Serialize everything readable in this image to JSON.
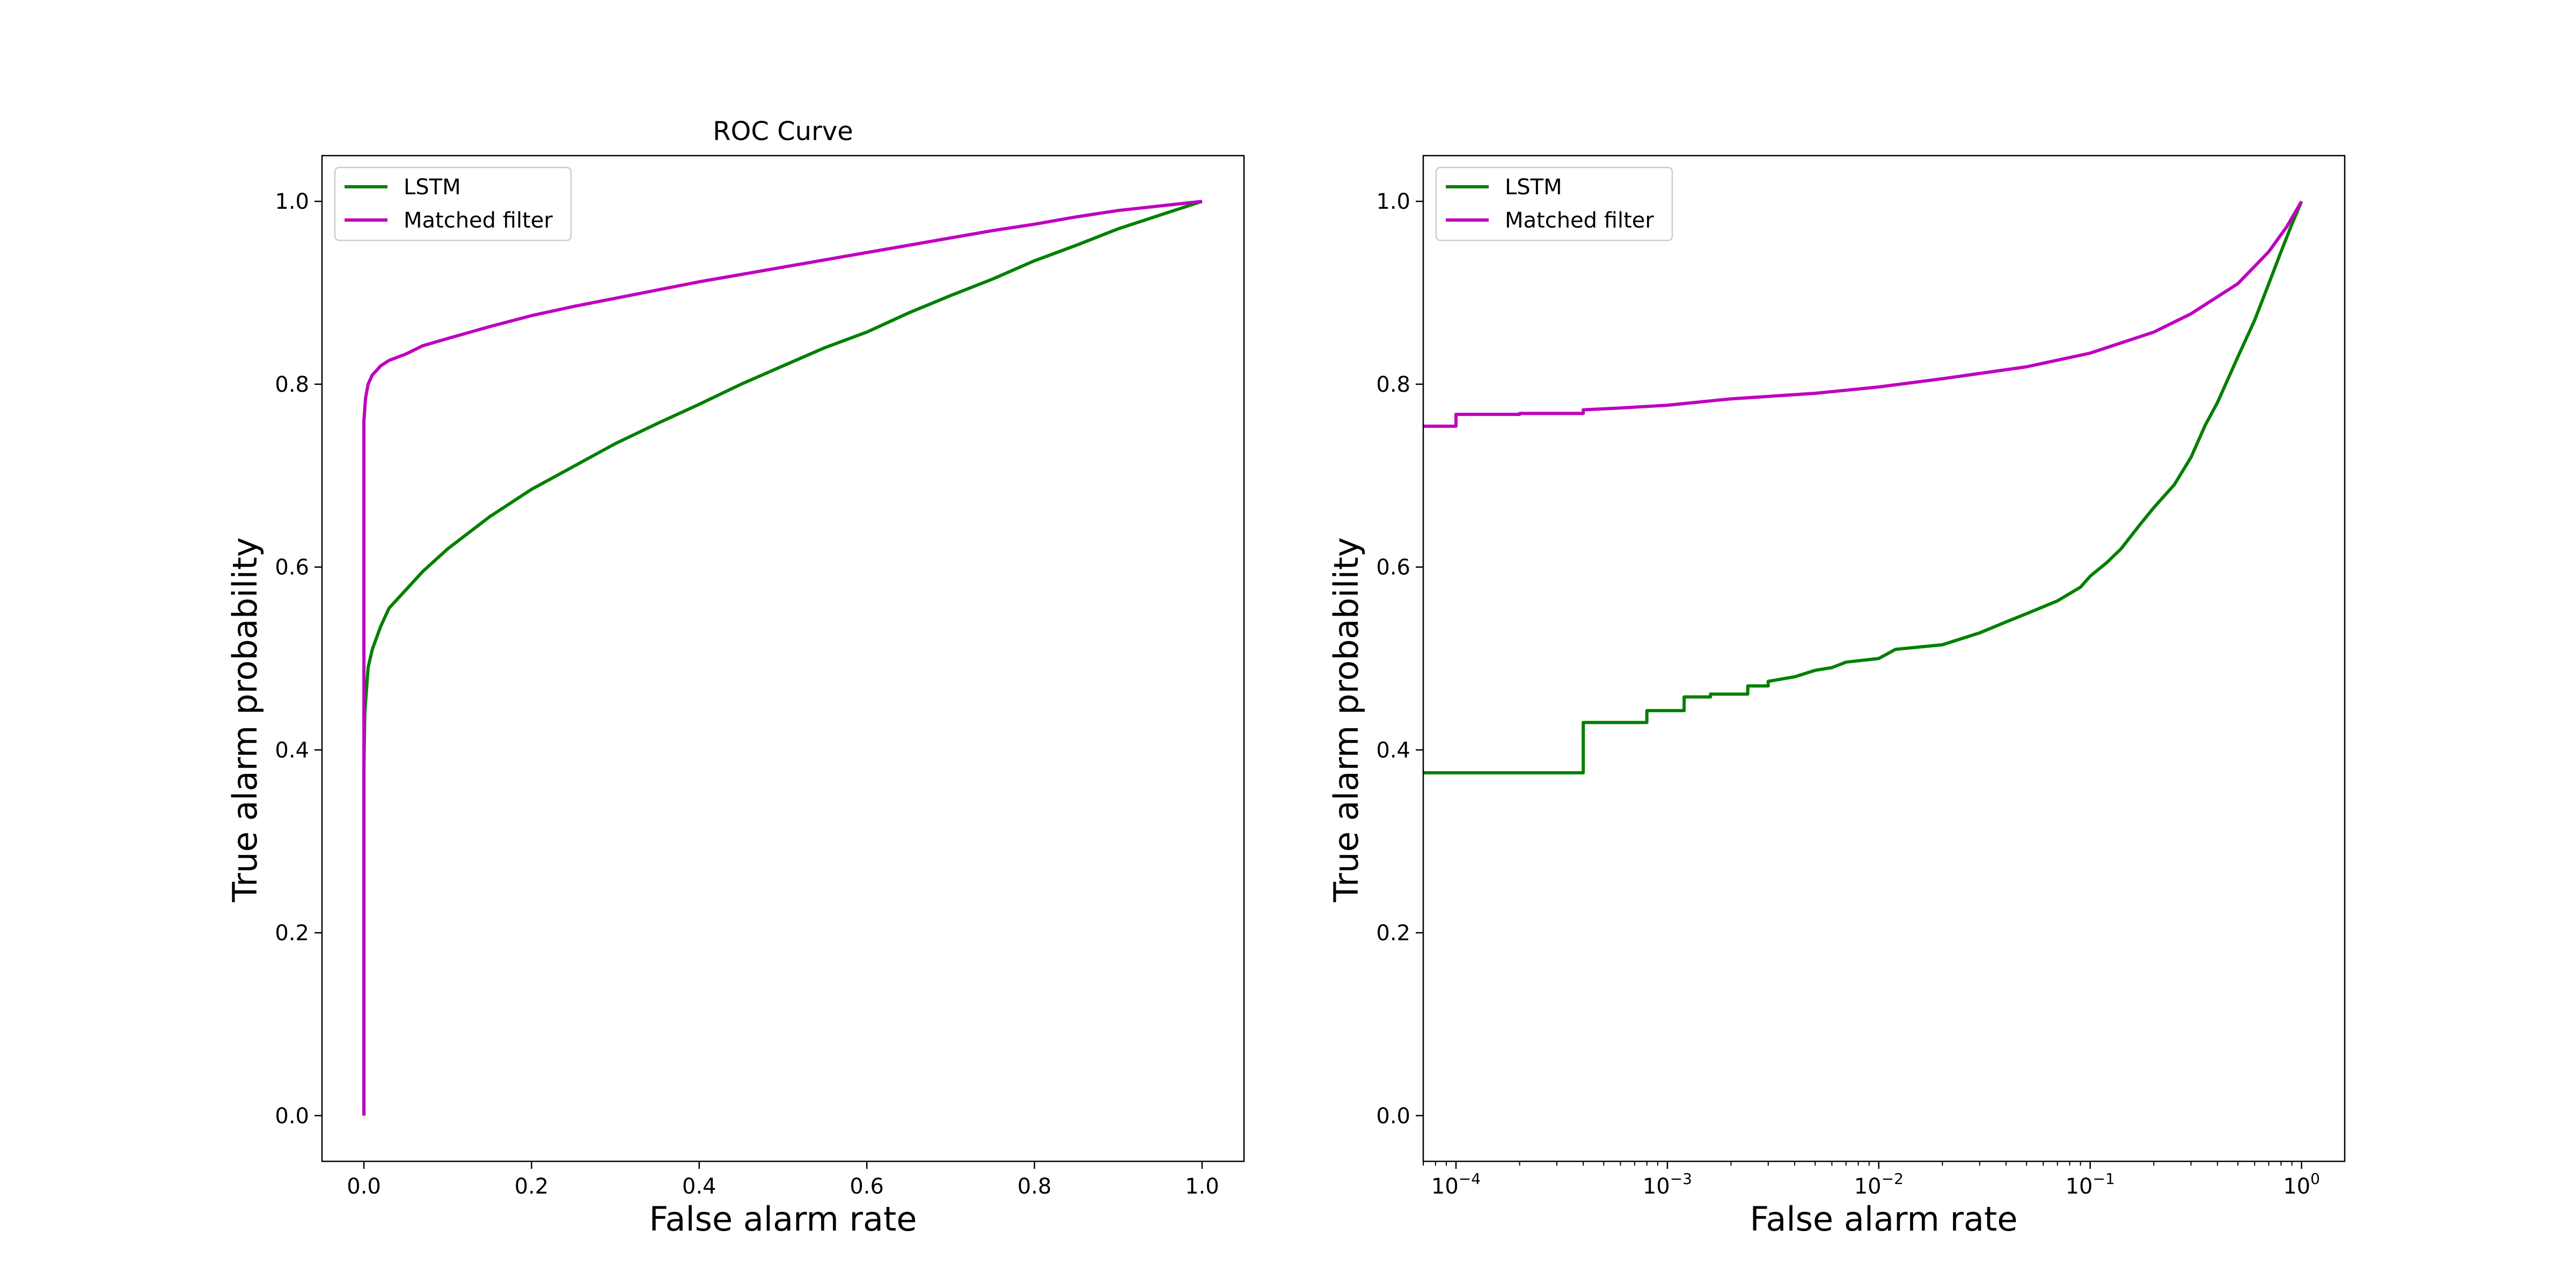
{
  "chart_data": [
    {
      "type": "line",
      "title": "ROC Curve",
      "xlabel": "False alarm rate",
      "ylabel": "True alarm probability",
      "xscale": "linear",
      "xlim": [
        -0.05,
        1.05
      ],
      "ylim": [
        -0.05,
        1.05
      ],
      "xticks": [
        0.0,
        0.2,
        0.4,
        0.6,
        0.8,
        1.0
      ],
      "xtick_labels": [
        "0.0",
        "0.2",
        "0.4",
        "0.6",
        "0.8",
        "1.0"
      ],
      "yticks": [
        0.0,
        0.2,
        0.4,
        0.6,
        0.8,
        1.0
      ],
      "ytick_labels": [
        "0.0",
        "0.2",
        "0.4",
        "0.6",
        "0.8",
        "1.0"
      ],
      "legend": "upper left",
      "grid": false,
      "series": [
        {
          "name": "LSTM",
          "color": "#008000",
          "points": [
            [
              0.0,
              0.0
            ],
            [
              0.0,
              0.38
            ],
            [
              0.001,
              0.44
            ],
            [
              0.005,
              0.49
            ],
            [
              0.01,
              0.51
            ],
            [
              0.02,
              0.535
            ],
            [
              0.03,
              0.555
            ],
            [
              0.05,
              0.575
            ],
            [
              0.07,
              0.595
            ],
            [
              0.1,
              0.62
            ],
            [
              0.15,
              0.655
            ],
            [
              0.2,
              0.685
            ],
            [
              0.25,
              0.71
            ],
            [
              0.3,
              0.735
            ],
            [
              0.35,
              0.757
            ],
            [
              0.4,
              0.778
            ],
            [
              0.45,
              0.8
            ],
            [
              0.5,
              0.82
            ],
            [
              0.55,
              0.84
            ],
            [
              0.6,
              0.857
            ],
            [
              0.65,
              0.878
            ],
            [
              0.7,
              0.897
            ],
            [
              0.75,
              0.915
            ],
            [
              0.8,
              0.935
            ],
            [
              0.85,
              0.952
            ],
            [
              0.9,
              0.97
            ],
            [
              0.95,
              0.985
            ],
            [
              1.0,
              1.0
            ]
          ]
        },
        {
          "name": "Matched filter",
          "color": "#BF00BF",
          "points": [
            [
              0.0,
              0.0
            ],
            [
              0.0,
              0.76
            ],
            [
              0.002,
              0.785
            ],
            [
              0.005,
              0.8
            ],
            [
              0.01,
              0.81
            ],
            [
              0.02,
              0.82
            ],
            [
              0.03,
              0.826
            ],
            [
              0.05,
              0.833
            ],
            [
              0.07,
              0.842
            ],
            [
              0.1,
              0.85
            ],
            [
              0.15,
              0.863
            ],
            [
              0.2,
              0.875
            ],
            [
              0.25,
              0.885
            ],
            [
              0.3,
              0.894
            ],
            [
              0.35,
              0.903
            ],
            [
              0.4,
              0.912
            ],
            [
              0.45,
              0.92
            ],
            [
              0.5,
              0.928
            ],
            [
              0.55,
              0.936
            ],
            [
              0.6,
              0.944
            ],
            [
              0.65,
              0.952
            ],
            [
              0.7,
              0.96
            ],
            [
              0.75,
              0.968
            ],
            [
              0.8,
              0.975
            ],
            [
              0.85,
              0.983
            ],
            [
              0.9,
              0.99
            ],
            [
              0.95,
              0.995
            ],
            [
              1.0,
              1.0
            ]
          ]
        }
      ]
    },
    {
      "type": "line",
      "title": "",
      "xlabel": "False alarm rate",
      "ylabel": "True alarm probability",
      "xscale": "log",
      "xlim": [
        7e-05,
        1.6
      ],
      "ylim": [
        -0.05,
        1.05
      ],
      "xticks": [
        0.0001,
        0.001,
        0.01,
        0.1,
        1
      ],
      "xtick_labels": [
        {
          "base": "10",
          "exp": "−4"
        },
        {
          "base": "10",
          "exp": "−3"
        },
        {
          "base": "10",
          "exp": "−2"
        },
        {
          "base": "10",
          "exp": "−1"
        },
        {
          "base": "10",
          "exp": "0"
        }
      ],
      "yticks": [
        0.0,
        0.2,
        0.4,
        0.6,
        0.8,
        1.0
      ],
      "ytick_labels": [
        "0.0",
        "0.2",
        "0.4",
        "0.6",
        "0.8",
        "1.0"
      ],
      "legend": "upper left",
      "grid": false,
      "series": [
        {
          "name": "LSTM",
          "color": "#008000",
          "points": [
            [
              7e-05,
              0.375
            ],
            [
              0.0004,
              0.375
            ],
            [
              0.0004,
              0.43
            ],
            [
              0.0008,
              0.43
            ],
            [
              0.0008,
              0.443
            ],
            [
              0.0012,
              0.443
            ],
            [
              0.0012,
              0.458
            ],
            [
              0.0016,
              0.458
            ],
            [
              0.0016,
              0.461
            ],
            [
              0.0024,
              0.461
            ],
            [
              0.0024,
              0.47
            ],
            [
              0.003,
              0.47
            ],
            [
              0.003,
              0.475
            ],
            [
              0.004,
              0.48
            ],
            [
              0.005,
              0.487
            ],
            [
              0.006,
              0.49
            ],
            [
              0.007,
              0.496
            ],
            [
              0.01,
              0.5
            ],
            [
              0.012,
              0.51
            ],
            [
              0.02,
              0.515
            ],
            [
              0.03,
              0.528
            ],
            [
              0.04,
              0.54
            ],
            [
              0.05,
              0.549
            ],
            [
              0.07,
              0.563
            ],
            [
              0.09,
              0.578
            ],
            [
              0.1,
              0.59
            ],
            [
              0.12,
              0.605
            ],
            [
              0.14,
              0.62
            ],
            [
              0.17,
              0.645
            ],
            [
              0.2,
              0.665
            ],
            [
              0.25,
              0.69
            ],
            [
              0.3,
              0.72
            ],
            [
              0.35,
              0.755
            ],
            [
              0.4,
              0.78
            ],
            [
              0.5,
              0.83
            ],
            [
              0.6,
              0.87
            ],
            [
              0.7,
              0.91
            ],
            [
              0.8,
              0.945
            ],
            [
              0.9,
              0.975
            ],
            [
              1.0,
              1.0
            ]
          ]
        },
        {
          "name": "Matched filter",
          "color": "#BF00BF",
          "points": [
            [
              7e-05,
              0.754
            ],
            [
              0.0001,
              0.754
            ],
            [
              0.0001,
              0.767
            ],
            [
              0.0002,
              0.767
            ],
            [
              0.0002,
              0.768
            ],
            [
              0.0004,
              0.768
            ],
            [
              0.0004,
              0.772
            ],
            [
              0.0006,
              0.774
            ],
            [
              0.001,
              0.777
            ],
            [
              0.002,
              0.784
            ],
            [
              0.005,
              0.79
            ],
            [
              0.01,
              0.797
            ],
            [
              0.02,
              0.806
            ],
            [
              0.05,
              0.819
            ],
            [
              0.1,
              0.834
            ],
            [
              0.2,
              0.857
            ],
            [
              0.3,
              0.877
            ],
            [
              0.5,
              0.91
            ],
            [
              0.7,
              0.945
            ],
            [
              0.85,
              0.972
            ],
            [
              1.0,
              1.0
            ]
          ]
        }
      ]
    }
  ]
}
